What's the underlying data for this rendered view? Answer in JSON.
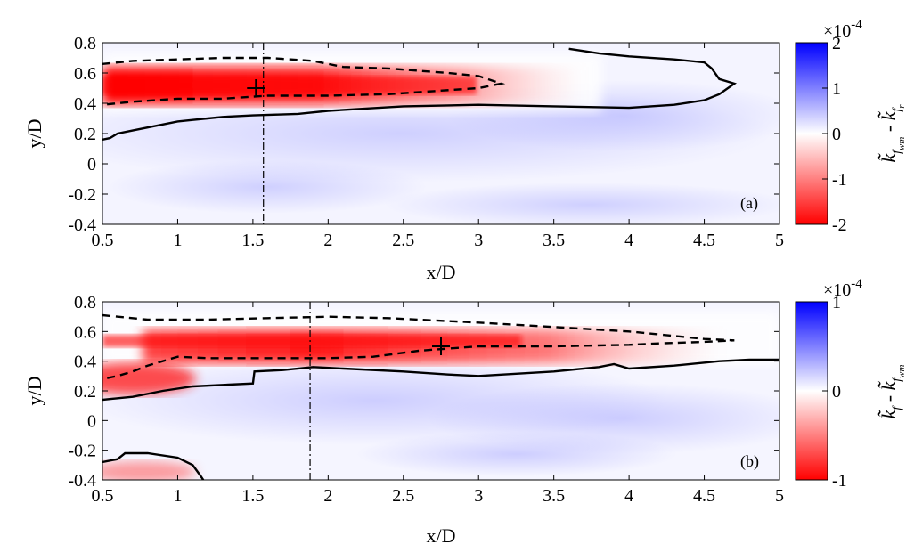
{
  "chart_data": [
    {
      "type": "heatmap",
      "panel": "(a)",
      "xlabel": "x/D",
      "ylabel": "y/D",
      "xlim": [
        0.5,
        5
      ],
      "ylim": [
        -0.4,
        0.8
      ],
      "xticks": [
        "0.5",
        "1",
        "1.5",
        "2",
        "2.5",
        "3",
        "3.5",
        "4",
        "4.5",
        "5"
      ],
      "yticks": [
        "0.8",
        "0.6",
        "0.4",
        "0.2",
        "0",
        "-0.2",
        "-0.4"
      ],
      "colorbar": {
        "label": "k̃_f_wm - k̃_f_r",
        "scale_text": "×10",
        "scale_exp": "-4",
        "ticks": [
          "2",
          "1",
          "0",
          "-1",
          "-2"
        ],
        "range": [
          -2,
          2
        ],
        "colors": {
          "positive": "#0000ff",
          "zero": "#ffffff",
          "negative": "#ff0000"
        }
      },
      "marker": {
        "x": 1.52,
        "y": 0.5,
        "symbol": "+"
      },
      "vline_x": 1.57,
      "solid_contour": [
        [
          0.5,
          0.16
        ],
        [
          0.55,
          0.17
        ],
        [
          0.6,
          0.2
        ],
        [
          0.7,
          0.22
        ],
        [
          0.8,
          0.24
        ],
        [
          0.9,
          0.26
        ],
        [
          1.0,
          0.28
        ],
        [
          1.1,
          0.29
        ],
        [
          1.2,
          0.3
        ],
        [
          1.3,
          0.31
        ],
        [
          1.5,
          0.32
        ],
        [
          1.8,
          0.33
        ],
        [
          2.0,
          0.35
        ],
        [
          2.5,
          0.38
        ],
        [
          3.0,
          0.39
        ],
        [
          3.5,
          0.38
        ],
        [
          4.0,
          0.37
        ],
        [
          4.3,
          0.39
        ],
        [
          4.5,
          0.42
        ],
        [
          4.6,
          0.46
        ],
        [
          4.7,
          0.53
        ],
        [
          4.6,
          0.56
        ],
        [
          4.55,
          0.63
        ],
        [
          4.5,
          0.67
        ],
        [
          4.3,
          0.69
        ],
        [
          4.0,
          0.71
        ],
        [
          3.8,
          0.73
        ],
        [
          3.6,
          0.76
        ]
      ],
      "dashed_contour": [
        [
          0.5,
          0.66
        ],
        [
          0.7,
          0.68
        ],
        [
          1.0,
          0.69
        ],
        [
          1.3,
          0.7
        ],
        [
          1.6,
          0.7
        ],
        [
          1.9,
          0.68
        ],
        [
          2.0,
          0.66
        ],
        [
          2.1,
          0.64
        ],
        [
          2.4,
          0.63
        ],
        [
          2.8,
          0.6
        ],
        [
          3.0,
          0.58
        ],
        [
          3.15,
          0.53
        ],
        [
          3.0,
          0.5
        ],
        [
          2.7,
          0.48
        ],
        [
          2.4,
          0.46
        ],
        [
          2.0,
          0.45
        ],
        [
          1.6,
          0.45
        ],
        [
          1.3,
          0.43
        ],
        [
          1.0,
          0.43
        ],
        [
          0.7,
          0.41
        ],
        [
          0.5,
          0.39
        ]
      ]
    },
    {
      "type": "heatmap",
      "panel": "(b)",
      "xlabel": "x/D",
      "ylabel": "y/D",
      "xlim": [
        0.5,
        5
      ],
      "ylim": [
        -0.4,
        0.8
      ],
      "xticks": [
        "0.5",
        "1",
        "1.5",
        "2",
        "2.5",
        "3",
        "3.5",
        "4",
        "4.5",
        "5"
      ],
      "yticks": [
        "0.8",
        "0.6",
        "0.4",
        "0.2",
        "0",
        "-0.2",
        "-0.4"
      ],
      "colorbar": {
        "label": "k̃_f - k̃_f_wm",
        "scale_text": "×10",
        "scale_exp": "-4",
        "ticks": [
          "1",
          "0",
          "-1"
        ],
        "range": [
          -1,
          1
        ],
        "colors": {
          "positive": "#0000ff",
          "zero": "#ffffff",
          "negative": "#ff0000"
        }
      },
      "marker": {
        "x": 2.75,
        "y": 0.5,
        "symbol": "+"
      },
      "vline_x": 1.88,
      "solid_contour": [
        [
          0.5,
          0.14
        ],
        [
          0.7,
          0.16
        ],
        [
          0.9,
          0.2
        ],
        [
          1.1,
          0.23
        ],
        [
          1.3,
          0.24
        ],
        [
          1.5,
          0.25
        ],
        [
          1.51,
          0.33
        ],
        [
          1.7,
          0.34
        ],
        [
          1.9,
          0.36
        ],
        [
          2.1,
          0.35
        ],
        [
          2.5,
          0.33
        ],
        [
          2.8,
          0.31
        ],
        [
          3.0,
          0.3
        ],
        [
          3.5,
          0.33
        ],
        [
          3.8,
          0.36
        ],
        [
          3.9,
          0.38
        ],
        [
          4.0,
          0.35
        ],
        [
          4.3,
          0.37
        ],
        [
          4.6,
          0.4
        ],
        [
          4.8,
          0.41
        ],
        [
          5.0,
          0.41
        ]
      ],
      "solid_contour_2": [
        [
          0.5,
          -0.28
        ],
        [
          0.6,
          -0.26
        ],
        [
          0.65,
          -0.22
        ],
        [
          0.8,
          -0.22
        ],
        [
          1.0,
          -0.25
        ],
        [
          1.1,
          -0.3
        ],
        [
          1.15,
          -0.37
        ],
        [
          1.17,
          -0.4
        ]
      ],
      "dashed_contour": [
        [
          0.5,
          0.71
        ],
        [
          0.8,
          0.68
        ],
        [
          1.2,
          0.68
        ],
        [
          1.6,
          0.69
        ],
        [
          2.0,
          0.7
        ],
        [
          2.4,
          0.69
        ],
        [
          3.0,
          0.66
        ],
        [
          3.5,
          0.63
        ],
        [
          4.0,
          0.6
        ],
        [
          4.3,
          0.57
        ],
        [
          4.5,
          0.55
        ],
        [
          4.7,
          0.54
        ],
        [
          4.5,
          0.53
        ],
        [
          4.2,
          0.52
        ],
        [
          4.0,
          0.51
        ],
        [
          3.5,
          0.5
        ],
        [
          3.0,
          0.5
        ],
        [
          2.6,
          0.47
        ],
        [
          2.3,
          0.43
        ],
        [
          2.0,
          0.42
        ],
        [
          1.7,
          0.42
        ],
        [
          1.4,
          0.42
        ],
        [
          1.2,
          0.42
        ],
        [
          1.0,
          0.43
        ],
        [
          0.8,
          0.37
        ],
        [
          0.7,
          0.33
        ],
        [
          0.6,
          0.3
        ],
        [
          0.5,
          0.28
        ]
      ]
    }
  ]
}
